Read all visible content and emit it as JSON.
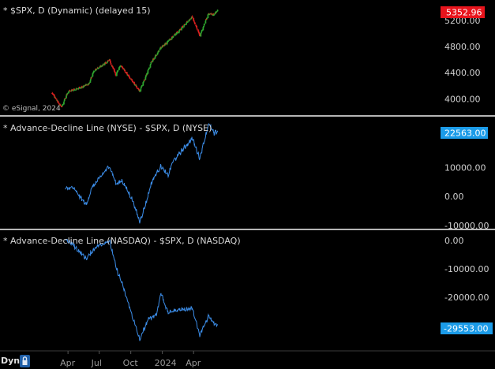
{
  "colors": {
    "background": "#000000",
    "separator": "#b0b0b0",
    "up_candle": "#2fa52f",
    "down_candle": "#e02020",
    "ad_line": "#3c8de8",
    "price_tag_spx": "#e8141c",
    "price_tag_ad": "#1b9be8"
  },
  "toolbar": {
    "mode_label": "Dyn",
    "lock_icon": "lock-icon"
  },
  "copyright": "© eSignal, 2024",
  "x_axis": {
    "labels": [
      "Apr",
      "Jul",
      "Oct",
      "2024",
      "Apr"
    ]
  },
  "chart_data": [
    {
      "type": "candlestick",
      "title": "* $SPX, D (Dynamic) (delayed 15)",
      "yticks": [
        "5200.00",
        "4800.00",
        "4400.00",
        "4000.00"
      ],
      "ytick_values": [
        5200,
        4800,
        4400,
        4000
      ],
      "ylim": [
        3800,
        5450
      ],
      "last_value": 5352.96,
      "last_label": "5352.96",
      "anchors": [
        [
          "2023-02-14",
          4080
        ],
        [
          "2023-03-13",
          3870
        ],
        [
          "2023-04-01",
          4110
        ],
        [
          "2023-05-01",
          4160
        ],
        [
          "2023-06-01",
          4230
        ],
        [
          "2023-06-15",
          4420
        ],
        [
          "2023-07-31",
          4590
        ],
        [
          "2023-08-18",
          4370
        ],
        [
          "2023-09-01",
          4515
        ],
        [
          "2023-10-27",
          4117
        ],
        [
          "2023-11-30",
          4560
        ],
        [
          "2023-12-28",
          4780
        ],
        [
          "2024-02-01",
          4950
        ],
        [
          "2024-03-28",
          5250
        ],
        [
          "2024-04-19",
          4967
        ],
        [
          "2024-05-15",
          5300
        ],
        [
          "2024-05-31",
          5290
        ],
        [
          "2024-06-10",
          5360
        ]
      ]
    },
    {
      "type": "line",
      "title": "* Advance-Decline Line (NYSE) - $SPX, D (NYSE)",
      "yticks": [
        "10000.00",
        "0.00",
        "-10000.00"
      ],
      "ytick_values": [
        10000,
        0,
        -10000
      ],
      "ylim": [
        -10500,
        25500
      ],
      "last_value": 22563,
      "last_label": "22563.00",
      "anchors": [
        [
          "2023-03-24",
          2500
        ],
        [
          "2023-04-15",
          3000
        ],
        [
          "2023-05-24",
          -3000
        ],
        [
          "2023-06-10",
          3000
        ],
        [
          "2023-07-31",
          10500
        ],
        [
          "2023-08-20",
          4000
        ],
        [
          "2023-09-05",
          5500
        ],
        [
          "2023-10-05",
          -1000
        ],
        [
          "2023-10-27",
          -8700
        ],
        [
          "2023-11-15",
          -2000
        ],
        [
          "2023-12-01",
          5000
        ],
        [
          "2023-12-28",
          10500
        ],
        [
          "2024-01-17",
          7000
        ],
        [
          "2024-02-01",
          12000
        ],
        [
          "2024-03-28",
          20000
        ],
        [
          "2024-04-19",
          13000
        ],
        [
          "2024-05-15",
          25000
        ],
        [
          "2024-05-31",
          21500
        ],
        [
          "2024-06-10",
          22563
        ]
      ]
    },
    {
      "type": "line",
      "title": "* Advance-Decline Line (NASDAQ) - $SPX, D (NASDAQ)",
      "yticks": [
        "0.00",
        "-10000.00",
        "-20000.00"
      ],
      "ytick_values": [
        0,
        -10000,
        -20000
      ],
      "ylim": [
        -37500,
        2500
      ],
      "last_value": -29553,
      "last_label": "-29553.00",
      "anchors": [
        [
          "2023-03-24",
          500
        ],
        [
          "2023-04-15",
          -1500
        ],
        [
          "2023-05-24",
          -6500
        ],
        [
          "2023-06-20",
          -2500
        ],
        [
          "2023-07-31",
          0
        ],
        [
          "2023-08-20",
          -10000
        ],
        [
          "2023-09-05",
          -15000
        ],
        [
          "2023-10-27",
          -35000
        ],
        [
          "2023-11-20",
          -28000
        ],
        [
          "2023-12-15",
          -26000
        ],
        [
          "2023-12-28",
          -18500
        ],
        [
          "2024-01-17",
          -25500
        ],
        [
          "2024-02-15",
          -24500
        ],
        [
          "2024-03-28",
          -24000
        ],
        [
          "2024-04-19",
          -33500
        ],
        [
          "2024-05-15",
          -26500
        ],
        [
          "2024-05-31",
          -29000
        ],
        [
          "2024-06-10",
          -29553
        ]
      ]
    }
  ]
}
